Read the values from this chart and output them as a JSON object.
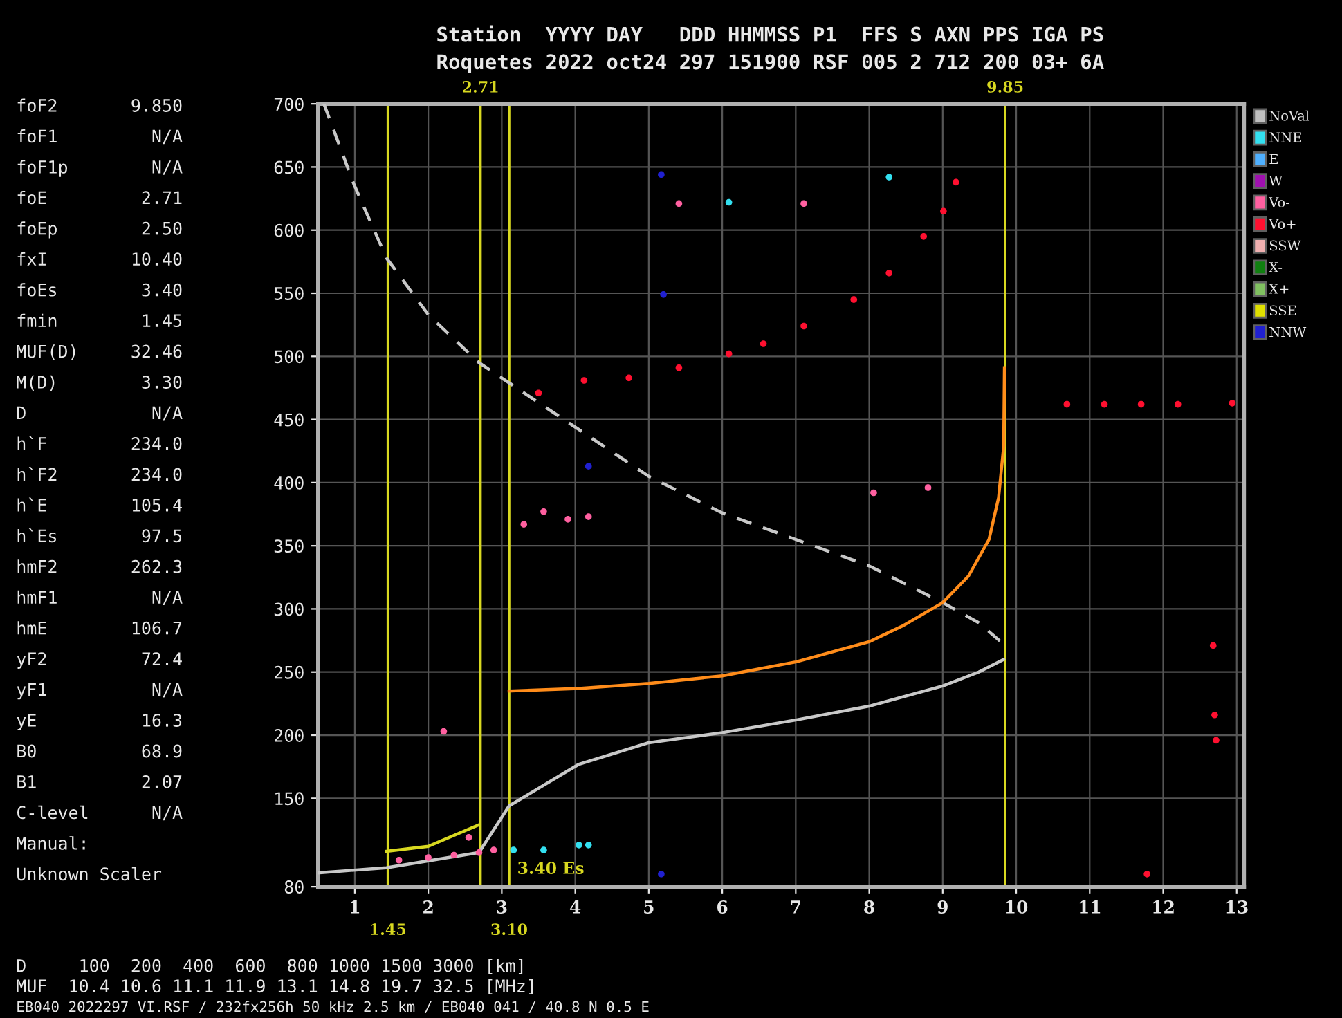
{
  "chart_data": {
    "type": "scatter",
    "title": "Station  YYYY DAY   DDD HHMMSS P1  FFS S AXN PPS IGA PS",
    "subtitle": "Roquetes 2022 oct24 297 151900 RSF 005 2 712 200 03+ 6A",
    "xlim": [
      0.5,
      13.1
    ],
    "xticks": [
      1,
      2,
      3,
      4,
      5,
      6,
      7,
      8,
      9,
      10,
      11,
      12,
      13
    ],
    "ylim": [
      80,
      700
    ],
    "yticks": [
      80,
      150,
      200,
      250,
      300,
      350,
      400,
      450,
      500,
      550,
      600,
      650,
      700
    ],
    "grid": true,
    "legend": "top right",
    "marker": "circle",
    "ref_lines": [
      {
        "axis": "x",
        "value": 1.45,
        "label": "1.45",
        "color": "#d8d820"
      },
      {
        "axis": "x",
        "value": 2.71,
        "label": "2.71",
        "color": "#d8d820"
      },
      {
        "axis": "x",
        "value": 3.1,
        "label": "3.10",
        "color": "#d8d820"
      },
      {
        "axis": "x",
        "value": 9.85,
        "label": "9.85",
        "color": "#d8d820"
      }
    ],
    "series": [
      {
        "type": "line",
        "marker": "none",
        "line_style": "dashed",
        "color": "#c8c8c8",
        "x": [
          0.58,
          0.99,
          1.43,
          2.0,
          2.69,
          3.1,
          4.05,
          5.0,
          6.0,
          7.0,
          8.0,
          9.0,
          9.49,
          9.83
        ],
        "values": [
          700,
          636,
          578,
          533,
          495,
          479,
          442,
          405,
          376,
          355,
          334,
          305,
          289,
          272
        ]
      },
      {
        "type": "line",
        "marker": "none",
        "line_style": "solid",
        "color": "#c8c8c8",
        "x": [
          0.51,
          1.43,
          2.69,
          3.1,
          4.05,
          5.0,
          6.0,
          7.0,
          8.0,
          9.0,
          9.49,
          9.83
        ],
        "values": [
          91,
          95,
          107,
          144,
          177,
          194,
          202,
          212,
          223,
          239,
          250,
          260
        ]
      },
      {
        "type": "line",
        "marker": "none",
        "line_style": "solid",
        "color": "#ff8c1a",
        "x": [
          3.1,
          4.05,
          5.0,
          6.0,
          7.0,
          8.0,
          8.47,
          9.0,
          9.35,
          9.63,
          9.76,
          9.83,
          9.84
        ],
        "values": [
          235,
          237,
          241,
          247,
          258,
          274,
          287,
          305,
          326,
          355,
          388,
          429,
          491
        ]
      },
      {
        "type": "line",
        "marker": "none",
        "line_style": "solid",
        "color": "#d8d820",
        "x": [
          1.43,
          2.0,
          2.69
        ],
        "values": [
          108,
          112,
          129
        ]
      },
      {
        "name": "NoVal",
        "color": "#c0c0c0"
      },
      {
        "name": "NNE",
        "color": "#33e0f0",
        "x": [
          3.16,
          3.57,
          4.05,
          4.18,
          6.09,
          8.27
        ],
        "values": [
          109,
          109,
          113,
          113,
          622,
          642
        ]
      },
      {
        "name": "E",
        "color": "#4fb0ff"
      },
      {
        "name": "W",
        "color": "#a010b0"
      },
      {
        "name": "Vo-",
        "color": "#ff60a0",
        "x": [
          1.6,
          2.0,
          2.35,
          2.55,
          2.69,
          2.89,
          2.21,
          3.3,
          3.57,
          3.9,
          4.18,
          8.06,
          8.8,
          5.41,
          7.11
        ],
        "values": [
          101,
          103,
          105,
          119,
          107,
          109,
          203,
          367,
          377,
          371,
          373,
          392,
          396,
          621,
          621
        ]
      },
      {
        "name": "Vo+",
        "color": "#ff1030",
        "x": [
          3.5,
          4.12,
          4.73,
          5.41,
          6.09,
          6.56,
          7.11,
          7.79,
          8.27,
          8.74,
          9.01,
          9.18,
          10.69,
          11.2,
          11.7,
          12.2,
          12.94,
          12.68,
          12.7,
          12.72,
          11.78
        ],
        "values": [
          471,
          481,
          483,
          491,
          502,
          510,
          524,
          545,
          566,
          595,
          615,
          638,
          462,
          462,
          462,
          462,
          463,
          271,
          216,
          196,
          90
        ]
      },
      {
        "name": "SSW",
        "color": "#f0b0b0"
      },
      {
        "name": "X-",
        "color": "#108010"
      },
      {
        "name": "X+",
        "color": "#80c060"
      },
      {
        "name": "SSE",
        "color": "#e0e000"
      },
      {
        "name": "NNW",
        "color": "#2020d0",
        "x": [
          5.17,
          5.2,
          5.17,
          4.18
        ],
        "values": [
          644,
          549,
          90,
          413
        ]
      }
    ],
    "annotations": [
      "foF2       9.850",
      "foF1         N/A",
      "foF1p        N/A",
      "foE         2.71",
      "foEp        2.50",
      "fxI        10.40",
      "foEs        3.40",
      "fmin        1.45",
      "MUF(D)     32.46",
      "M(D)        3.30",
      "D            N/A",
      "h`F        234.0",
      "h`F2       234.0",
      "h`E        105.4",
      "h`Es        97.5",
      "hmF2       262.3",
      "hmF1         N/A",
      "hmE        106.7",
      "yF2         72.4",
      "yF1          N/A",
      "yE          16.3",
      "B0          68.9",
      "B1          2.07",
      "C-level      N/A",
      "Manual:",
      "Unknown Scaler",
      "D     100  200  400  600  800 1000 1500 3000 [km]",
      "MUF  10.4 10.6 11.1 11.9 13.1 14.8 19.7 32.5 [MHz]",
      "EB040 2022297 VI.RSF / 232fx256h 50 kHz 2.5 km / EB040 041 / 40.8 N 0.5 E",
      "3.40 Es"
    ]
  }
}
